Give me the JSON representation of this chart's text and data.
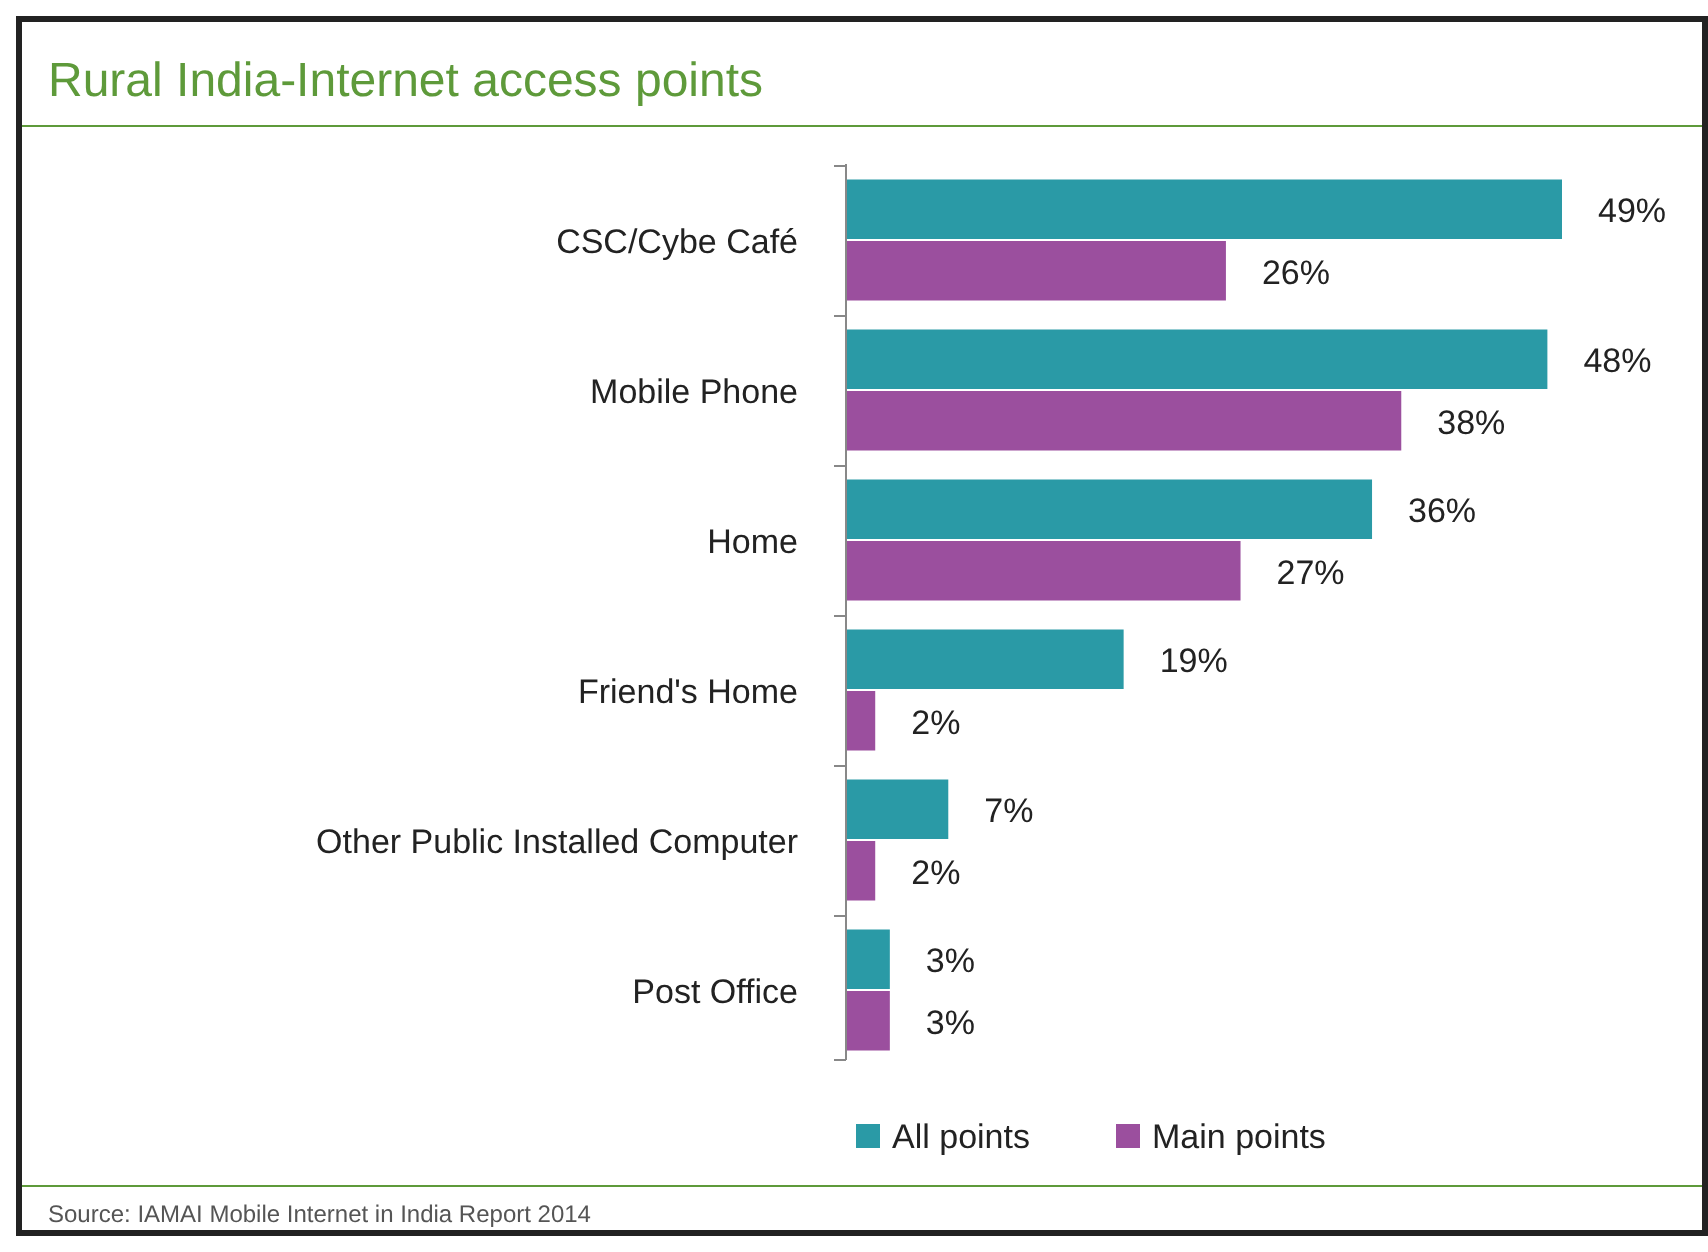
{
  "chart_data": {
    "type": "bar",
    "orientation": "horizontal",
    "title": "Rural India-Internet access points",
    "categories": [
      "CSC/Cybe Café",
      "Mobile Phone",
      "Home",
      "Friend's Home",
      "Other Public Installed Computer",
      "Post Office"
    ],
    "series": [
      {
        "name": "All points",
        "color": "#2a9aa6",
        "values": [
          49,
          48,
          36,
          19,
          7,
          3
        ],
        "value_labels": [
          "49%",
          "48%",
          "36%",
          "19%",
          "7%",
          "3%"
        ]
      },
      {
        "name": "Main points",
        "color": "#9b4f9e",
        "values": [
          26,
          38,
          27,
          2,
          2,
          3
        ],
        "value_labels": [
          "26%",
          "38%",
          "27%",
          "2%",
          "2%",
          "3%"
        ]
      }
    ],
    "legend": "bottom",
    "annotations": [
      "Source: IAMAI Mobile Internet in India Report 2014"
    ]
  }
}
